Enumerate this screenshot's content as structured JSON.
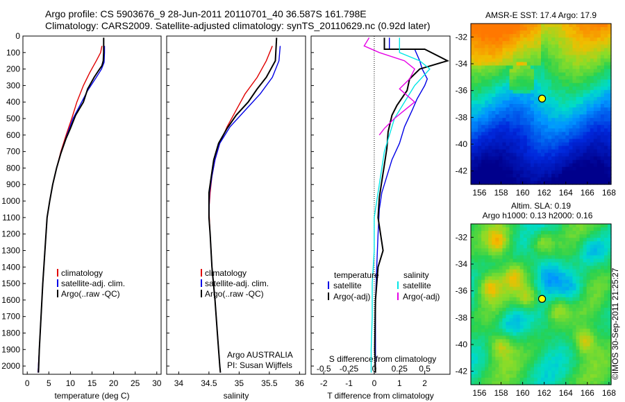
{
  "header": {
    "line1": "Argo profile: CS 5903676_9 28-Jun-2011 20110701_40 36.587S 161.798E",
    "line2": "Climatology: CARS2009. Satellite-adjusted climatology: synTS_20110629.nc (0.92d later)"
  },
  "colors": {
    "climatology": "#e00000",
    "satellite": "#0000e6",
    "argo": "#000000",
    "sal_satellite": "#00e6e6",
    "sal_argo": "#e600e6"
  },
  "chart_data": [
    {
      "type": "line",
      "id": "temperature",
      "xlabel": "temperature (deg C)",
      "ylim": [
        0,
        2050
      ],
      "xlim": [
        -1,
        31
      ],
      "xticks": [
        0,
        5,
        10,
        15,
        20,
        25,
        30
      ],
      "yticks": [
        0,
        100,
        200,
        300,
        400,
        500,
        600,
        700,
        800,
        900,
        1000,
        1100,
        1200,
        1300,
        1400,
        1500,
        1600,
        1700,
        1800,
        1900,
        2000
      ],
      "legend": [
        "climatology",
        "satellite-adj. clim.",
        "Argo(..raw -QC)"
      ],
      "series": [
        {
          "name": "climatology",
          "color": "#e00000",
          "points": [
            [
              17.3,
              60
            ],
            [
              17.0,
              100
            ],
            [
              16.0,
              150
            ],
            [
              14.5,
              220
            ],
            [
              13.0,
              300
            ],
            [
              11.5,
              400
            ],
            [
              10.3,
              500
            ],
            [
              9.0,
              600
            ],
            [
              7.8,
              700
            ],
            [
              6.8,
              800
            ],
            [
              5.9,
              900
            ],
            [
              5.2,
              1000
            ],
            [
              4.6,
              1100
            ],
            [
              4.1,
              1300
            ],
            [
              3.6,
              1500
            ],
            [
              3.2,
              1700
            ],
            [
              2.8,
              1900
            ],
            [
              2.5,
              2040
            ]
          ]
        },
        {
          "name": "satellite-adj. clim.",
          "color": "#0000e6",
          "points": [
            [
              17.9,
              60
            ],
            [
              17.9,
              100
            ],
            [
              17.8,
              160
            ],
            [
              17.2,
              200
            ],
            [
              16.0,
              250
            ],
            [
              14.0,
              330
            ],
            [
              12.0,
              430
            ],
            [
              10.6,
              500
            ],
            [
              9.2,
              600
            ],
            [
              7.9,
              700
            ],
            [
              6.8,
              800
            ],
            [
              5.9,
              900
            ],
            [
              5.2,
              1000
            ],
            [
              4.6,
              1100
            ],
            [
              4.1,
              1300
            ],
            [
              3.6,
              1500
            ],
            [
              3.2,
              1700
            ],
            [
              2.8,
              1900
            ],
            [
              2.5,
              2040
            ]
          ]
        },
        {
          "name": "Argo(..raw -QC)",
          "color": "#000000",
          "points": [
            [
              17.7,
              10
            ],
            [
              17.7,
              100
            ],
            [
              17.6,
              150
            ],
            [
              17.3,
              180
            ],
            [
              16.5,
              210
            ],
            [
              15.5,
              250
            ],
            [
              14.0,
              320
            ],
            [
              13.0,
              400
            ],
            [
              11.2,
              480
            ],
            [
              10.0,
              560
            ],
            [
              9.0,
              620
            ],
            [
              7.8,
              710
            ],
            [
              6.8,
              800
            ],
            [
              5.9,
              900
            ],
            [
              5.2,
              1000
            ],
            [
              4.6,
              1100
            ],
            [
              4.1,
              1300
            ],
            [
              3.6,
              1500
            ],
            [
              3.2,
              1700
            ],
            [
              2.8,
              1900
            ],
            [
              2.6,
              2040
            ]
          ]
        }
      ]
    },
    {
      "type": "line",
      "id": "salinity",
      "xlabel": "salinity",
      "ylim": [
        0,
        2050
      ],
      "xlim": [
        33.8,
        36.1
      ],
      "xticks": [
        34,
        34.5,
        35,
        35.5,
        36
      ],
      "legend": [
        "climatology",
        "satellite-adj. clim.",
        "Argo(..raw -QC)"
      ],
      "annotation": [
        "Argo AUSTRALIA",
        "PI: Susan Wijffels"
      ],
      "series": [
        {
          "name": "climatology",
          "color": "#e00000",
          "points": [
            [
              35.55,
              60
            ],
            [
              35.45,
              150
            ],
            [
              35.3,
              250
            ],
            [
              35.1,
              350
            ],
            [
              34.95,
              450
            ],
            [
              34.8,
              550
            ],
            [
              34.68,
              650
            ],
            [
              34.6,
              750
            ],
            [
              34.55,
              850
            ],
            [
              34.52,
              950
            ],
            [
              34.5,
              1050
            ],
            [
              34.52,
              1200
            ],
            [
              34.55,
              1400
            ],
            [
              34.6,
              1600
            ],
            [
              34.64,
              1800
            ],
            [
              34.68,
              2000
            ],
            [
              34.69,
              2040
            ]
          ]
        },
        {
          "name": "satellite-adj. clim.",
          "color": "#0000e6",
          "points": [
            [
              35.68,
              60
            ],
            [
              35.66,
              150
            ],
            [
              35.55,
              250
            ],
            [
              35.35,
              350
            ],
            [
              35.1,
              450
            ],
            [
              34.85,
              550
            ],
            [
              34.68,
              650
            ],
            [
              34.6,
              750
            ],
            [
              34.55,
              850
            ],
            [
              34.51,
              950
            ],
            [
              34.5,
              1100
            ],
            [
              34.52,
              1200
            ],
            [
              34.55,
              1400
            ],
            [
              34.6,
              1600
            ],
            [
              34.64,
              1800
            ],
            [
              34.68,
              2000
            ],
            [
              34.69,
              2040
            ]
          ]
        },
        {
          "name": "Argo(..raw -QC)",
          "color": "#000000",
          "points": [
            [
              35.62,
              10
            ],
            [
              35.6,
              150
            ],
            [
              35.45,
              250
            ],
            [
              35.3,
              320
            ],
            [
              35.15,
              400
            ],
            [
              34.95,
              480
            ],
            [
              34.8,
              560
            ],
            [
              34.66,
              650
            ],
            [
              34.58,
              750
            ],
            [
              34.54,
              850
            ],
            [
              34.5,
              950
            ],
            [
              34.5,
              1100
            ],
            [
              34.52,
              1200
            ],
            [
              34.55,
              1400
            ],
            [
              34.6,
              1600
            ],
            [
              34.64,
              1800
            ],
            [
              34.68,
              2000
            ],
            [
              34.69,
              2040
            ]
          ]
        }
      ]
    },
    {
      "type": "line",
      "id": "difference",
      "xlabel": "T difference from climatology",
      "xlabel_top": "S difference from climatology",
      "ylim": [
        0,
        2050
      ],
      "xlim": [
        -2.5,
        3
      ],
      "xticks": [
        -2,
        -1,
        0,
        1,
        2
      ],
      "xticks_labels": [
        "-2",
        "-1",
        "0",
        "1",
        "2"
      ],
      "sticks_labels": [
        "-0.5",
        "-0.25",
        "0",
        "0.25",
        "0.5"
      ],
      "legend_left_title": "temperature",
      "legend_right_title": "salinity",
      "legend_left": [
        "satellite",
        "Argo(-adj)"
      ],
      "legend_right": [
        "satellite",
        "Argo(-adj)"
      ],
      "series": [
        {
          "name": "T satellite",
          "color": "#0000e6",
          "points": [
            [
              0.6,
              10
            ],
            [
              0.6,
              80
            ],
            [
              1.6,
              80
            ],
            [
              1.8,
              150
            ],
            [
              1.9,
              200
            ],
            [
              2.1,
              260
            ],
            [
              2.0,
              300
            ],
            [
              1.7,
              380
            ],
            [
              1.5,
              450
            ],
            [
              1.2,
              550
            ],
            [
              1.0,
              650
            ],
            [
              0.7,
              750
            ],
            [
              0.5,
              850
            ],
            [
              0.3,
              950
            ],
            [
              0.2,
              1050
            ],
            [
              0.15,
              1200
            ],
            [
              0.1,
              1400
            ],
            [
              0.05,
              1600
            ],
            [
              0.05,
              1900
            ],
            [
              0.05,
              2040
            ]
          ]
        },
        {
          "name": "T Argo(-adj)",
          "color": "#000000",
          "points": [
            [
              0.4,
              10
            ],
            [
              0.4,
              80
            ],
            [
              2.0,
              80
            ],
            [
              2.9,
              150
            ],
            [
              1.8,
              200
            ],
            [
              1.4,
              260
            ],
            [
              1.3,
              330
            ],
            [
              0.9,
              420
            ],
            [
              0.7,
              480
            ],
            [
              0.55,
              580
            ],
            [
              0.5,
              680
            ],
            [
              0.4,
              780
            ],
            [
              0.3,
              880
            ],
            [
              0.2,
              980
            ],
            [
              0.15,
              1100
            ],
            [
              0.3,
              1250
            ],
            [
              0.35,
              1300
            ],
            [
              0.15,
              1400
            ],
            [
              0.05,
              1600
            ],
            [
              0.02,
              1900
            ],
            [
              0.05,
              2040
            ]
          ]
        },
        {
          "name": "S satellite",
          "color": "#00e6e6",
          "points": [
            [
              0.25,
              10
            ],
            [
              0.25,
              100
            ],
            [
              0.45,
              150
            ],
            [
              0.55,
              200
            ],
            [
              0.4,
              300
            ],
            [
              0.3,
              400
            ],
            [
              0.2,
              500
            ],
            [
              0.1,
              700
            ],
            [
              0.05,
              900
            ],
            [
              0.0,
              1100
            ],
            [
              0.0,
              1300
            ],
            [
              -0.02,
              1500
            ],
            [
              -0.02,
              1700
            ],
            [
              -0.03,
              1900
            ],
            [
              -0.03,
              2040
            ]
          ]
        },
        {
          "name": "S Argo(-adj)",
          "color": "#e600e6",
          "points": [
            [
              -0.05,
              10
            ],
            [
              -0.1,
              60
            ],
            [
              0.05,
              100
            ],
            [
              0.3,
              150
            ],
            [
              0.4,
              200
            ],
            [
              0.35,
              260
            ],
            [
              0.25,
              320
            ],
            [
              0.4,
              400
            ],
            [
              0.3,
              450
            ],
            [
              0.2,
              500
            ],
            [
              0.1,
              560
            ],
            [
              0.05,
              600
            ]
          ]
        }
      ]
    }
  ],
  "maps": [
    {
      "id": "sst-map",
      "title_line1": "AMSR-E SST: 17.4 Argo: 17.9",
      "title_line2": "",
      "xticks": [
        156,
        158,
        160,
        162,
        164,
        166,
        168
      ],
      "yticks": [
        -32,
        -34,
        -36,
        -38,
        -40,
        -42
      ],
      "marker_lon": 161.8,
      "marker_lat": -36.6
    },
    {
      "id": "sla-map",
      "title_line1": "Altim. SLA: 0.19",
      "title_line2": "Argo h1000: 0.13 h2000: 0.16",
      "xticks": [
        156,
        158,
        160,
        162,
        164,
        166,
        168
      ],
      "yticks": [
        -32,
        -34,
        -36,
        -38,
        -40,
        -42
      ],
      "marker_lon": 161.8,
      "marker_lat": -36.6
    }
  ],
  "footer": {
    "credit": "©IMOS 30-Sep-2011 21:25:27"
  }
}
